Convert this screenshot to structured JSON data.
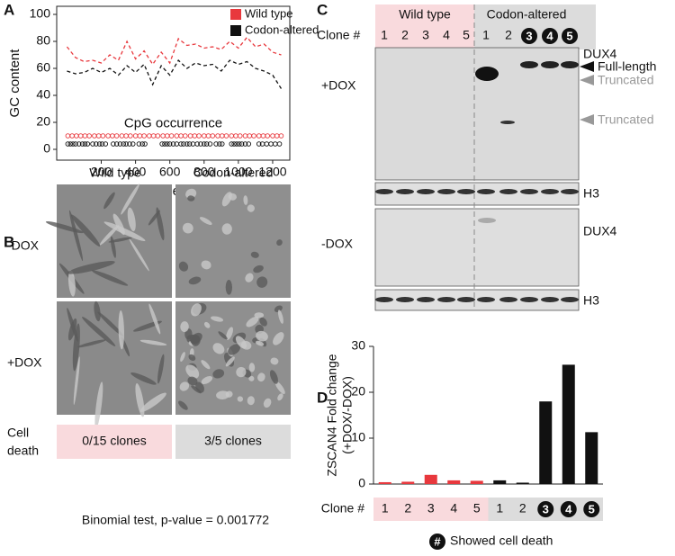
{
  "panel_labels": [
    "A",
    "B",
    "C",
    "D"
  ],
  "chart_data": [
    {
      "type": "line",
      "ylabel": "GC content",
      "xlabel": "Nucleotide position",
      "x": [
        0,
        50,
        100,
        150,
        200,
        250,
        300,
        350,
        400,
        450,
        500,
        550,
        600,
        650,
        700,
        750,
        800,
        850,
        900,
        950,
        1000,
        1050,
        1100,
        1150,
        1200,
        1250
      ],
      "series": [
        {
          "name": "Wild type",
          "color": "#e8383d",
          "values": [
            76,
            68,
            65,
            66,
            64,
            70,
            66,
            80,
            67,
            73,
            63,
            72,
            64,
            82,
            77,
            78,
            75,
            76,
            74,
            80,
            75,
            83,
            76,
            78,
            72,
            70
          ]
        },
        {
          "name": "Codon-altered",
          "color": "#111111",
          "values": [
            58,
            56,
            57,
            60,
            57,
            60,
            55,
            62,
            57,
            63,
            48,
            62,
            55,
            66,
            60,
            64,
            62,
            63,
            58,
            66,
            63,
            65,
            60,
            58,
            55,
            45
          ]
        }
      ],
      "xlim": [
        -60,
        1300
      ],
      "xticks": [
        200,
        400,
        600,
        800,
        1000,
        1200
      ],
      "ylim": [
        -8,
        106
      ],
      "yticks": [
        0,
        20,
        40,
        60,
        80,
        100
      ],
      "legend": "upper right",
      "annotation": "CpG occurrence",
      "cpg": [
        {
          "color": "#e8383d",
          "y": 10,
          "x": [
            5,
            30,
            55,
            80,
            105,
            130,
            160,
            185,
            210,
            240,
            265,
            290,
            320,
            345,
            370,
            400,
            425,
            450,
            480,
            505,
            530,
            560,
            585,
            610,
            640,
            665,
            690,
            720,
            745,
            770,
            800,
            825,
            850,
            880,
            905,
            930,
            960,
            985,
            1010,
            1040,
            1065,
            1090,
            1120,
            1145,
            1170,
            1200,
            1225,
            1250
          ]
        },
        {
          "color": "#111111",
          "y": 4,
          "x": [
            5,
            20,
            35,
            50,
            70,
            90,
            105,
            120,
            150,
            170,
            190,
            205,
            225,
            270,
            290,
            310,
            330,
            345,
            365,
            385,
            420,
            440,
            455,
            555,
            570,
            585,
            600,
            620,
            640,
            665,
            680,
            700,
            715,
            735,
            760,
            780,
            800,
            815,
            835,
            870,
            890,
            905,
            960,
            975,
            990,
            1005,
            1020,
            1040,
            1060,
            1120,
            1140,
            1165,
            1190,
            1215,
            1240
          ]
        }
      ]
    },
    {
      "type": "bar",
      "ylabel": [
        "ZSCAN4 Fold change",
        "(+DOX/-DOX)"
      ],
      "xlabel": "Clone #",
      "categories": [
        "1",
        "2",
        "3",
        "4",
        "5",
        "1",
        "2",
        "3",
        "4",
        "5"
      ],
      "values": [
        0.4,
        0.5,
        2,
        0.8,
        0.7,
        0.8,
        0.3,
        18,
        26,
        11.3
      ],
      "colors": [
        "#e8383d",
        "#e8383d",
        "#e8383d",
        "#e8383d",
        "#e8383d",
        "#111111",
        "#111111",
        "#111111",
        "#111111",
        "#111111"
      ],
      "circled": [
        false,
        false,
        false,
        false,
        false,
        false,
        false,
        true,
        true,
        true
      ],
      "ylim": [
        0,
        30
      ],
      "yticks": [
        0,
        10,
        20,
        30
      ],
      "legend_symbol": "#",
      "legend_text": "Showed cell death"
    }
  ],
  "cell_images": {
    "columns": [
      "Wild type",
      "Codon-altered"
    ],
    "rows": [
      "-DOX",
      "+DOX"
    ],
    "death_label": [
      "Cell",
      "death"
    ],
    "death_results": [
      "0/15 clones",
      "3/5 clones"
    ],
    "test": "Binomial test, p-value = 0.001772"
  },
  "blot": {
    "groups": [
      "Wild type",
      "Codon-altered"
    ],
    "clone_label": "Clone #",
    "lanes": [
      "1",
      "2",
      "3",
      "4",
      "5",
      "1",
      "2",
      "3",
      "4",
      "5"
    ],
    "circled": [
      false,
      false,
      false,
      false,
      false,
      false,
      false,
      true,
      true,
      true
    ],
    "conditions": [
      "+DOX",
      "-DOX"
    ],
    "labels": [
      "DUX4",
      "Full-length",
      "Truncated",
      "Truncated",
      "H3",
      "DUX4",
      "H3"
    ]
  }
}
